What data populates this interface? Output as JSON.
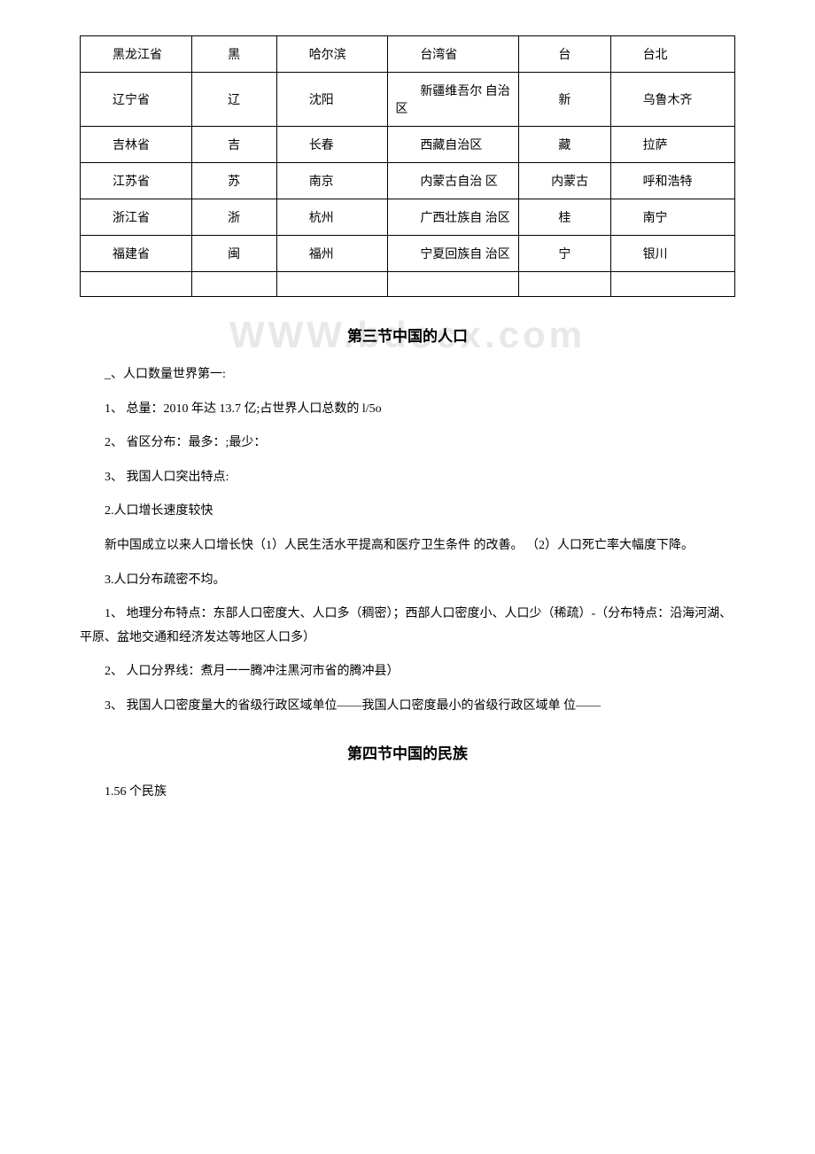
{
  "table": {
    "rows": [
      {
        "c1": "黑龙江省",
        "c2": "黑",
        "c3": "哈尔滨",
        "c4": "台湾省",
        "c5": "台",
        "c6": "台北"
      },
      {
        "c1": "辽宁省",
        "c2": "辽",
        "c3": "沈阳",
        "c4": "新疆维吾尔 自治区",
        "c5": "新",
        "c6": "乌鲁木齐"
      },
      {
        "c1": "吉林省",
        "c2": "吉",
        "c3": "长春",
        "c4": "西藏自治区",
        "c5": "藏",
        "c6": "拉萨"
      },
      {
        "c1": "江苏省",
        "c2": "苏",
        "c3": "南京",
        "c4": "内蒙古自治 区",
        "c5": "内蒙古",
        "c6": "呼和浩特"
      },
      {
        "c1": "浙江省",
        "c2": "浙",
        "c3": "杭州",
        "c4": "广西壮族自 治区",
        "c5": "桂",
        "c6": "南宁"
      },
      {
        "c1": "福建省",
        "c2": "闽",
        "c3": "福州",
        "c4": "宁夏回族自 治区",
        "c5": "宁",
        "c6": "银川"
      }
    ],
    "col_widths": [
      "17%",
      "13%",
      "17%",
      "20%",
      "14%",
      "19%"
    ]
  },
  "section3": {
    "title": "第三节中国的人口",
    "watermark": "WWW.bdocx.com",
    "p1": "_、人口数量世界第一:",
    "p2": "1、 总量：2010 年达 13.7 亿;占世界人口总数的 l/5o",
    "p3": "2、 省区分布：最多：;最少：",
    "p4": "3、 我国人口突出特点:",
    "p5": "2.人口增长速度较快",
    "p6": "新中国成立以来人口增长快（1）人民生活水平提高和医疗卫生条件 的改善。 （2）人口死亡率大幅度下降。",
    "p7": "3.人口分布疏密不均。",
    "p8": "1、 地理分布特点：东部人口密度大、人口多（稠密）；西部人口密度小、人口少（稀疏）-（分布特点：沿海河湖、平原、盆地交通和经济发达等地区人口多）",
    "p9": "2、 人口分界线：煮月一一腾冲注黑河市省的腾冲县）",
    "p10": "3、 我国人口密度量大的省级行政区域单位——我国人口密度最小的省级行政区域单 位——"
  },
  "section4": {
    "title": "第四节中国的民族",
    "p1": "1.56 个民族"
  }
}
